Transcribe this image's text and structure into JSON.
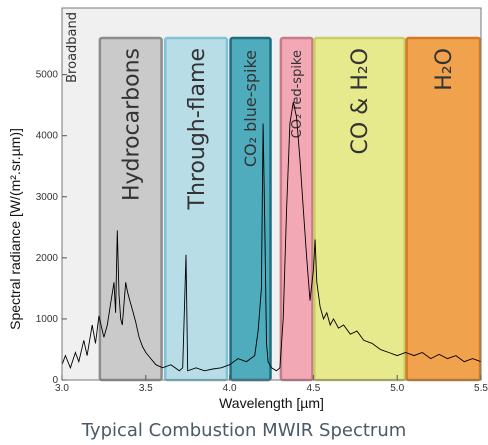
{
  "caption": "Typical Combustion MWIR Spectrum",
  "chart_data": {
    "type": "line",
    "xlabel": "Wavelength [µm]",
    "ylabel": "Spectral radiance [W/(m².sr.µm)]",
    "xlim": [
      3.0,
      5.5
    ],
    "ylim": [
      0,
      5600
    ],
    "xticks": [
      3.0,
      3.5,
      4.0,
      4.5,
      5.0,
      5.5
    ],
    "xtick_labels": [
      "3.0",
      "3.5",
      "4.0",
      "4.5",
      "5.0",
      "5.5"
    ],
    "yticks": [
      0,
      1000,
      2000,
      3000,
      4000,
      5000
    ],
    "ytick_labels": [
      "0",
      "1000",
      "2000",
      "3000",
      "4000",
      "5000"
    ],
    "background_color": "#f0f0f0",
    "line_color": "#000000",
    "bands": [
      {
        "label": "Broadband",
        "x0": 3.0,
        "x1": 5.5,
        "color": "#f0f0f0",
        "border": "#bdbdbd"
      },
      {
        "label": "Hydrocarbons",
        "x0": 3.22,
        "x1": 3.6,
        "color": "#cacaca",
        "border": "#8c8c8c"
      },
      {
        "label": "Through-flame",
        "x0": 3.61,
        "x1": 3.99,
        "color": "#b8dde6",
        "border": "#7fc3d6"
      },
      {
        "label": "CO₂ blue-spike",
        "x0": 4.0,
        "x1": 4.25,
        "color": "#4eacbc",
        "border": "#1f6e80"
      },
      {
        "label": "CO₂ red-spike",
        "x0": 4.3,
        "x1": 4.5,
        "color": "#f2a9b5",
        "border": "#c97b8a"
      },
      {
        "label": "CO & H₂O",
        "x0": 4.5,
        "x1": 5.05,
        "color": "#e6ea8c",
        "border": "#c9cf66"
      },
      {
        "label": "H₂O",
        "x0": 5.05,
        "x1": 5.5,
        "color": "#f1a24d",
        "border": "#d57a24"
      }
    ],
    "spectrum": [
      [
        3.0,
        250
      ],
      [
        3.02,
        400
      ],
      [
        3.05,
        200
      ],
      [
        3.08,
        450
      ],
      [
        3.1,
        300
      ],
      [
        3.13,
        650
      ],
      [
        3.15,
        400
      ],
      [
        3.18,
        900
      ],
      [
        3.2,
        600
      ],
      [
        3.22,
        1050
      ],
      [
        3.25,
        700
      ],
      [
        3.27,
        900
      ],
      [
        3.29,
        1250
      ],
      [
        3.31,
        1600
      ],
      [
        3.32,
        1100
      ],
      [
        3.33,
        2450
      ],
      [
        3.34,
        1400
      ],
      [
        3.35,
        1000
      ],
      [
        3.36,
        900
      ],
      [
        3.37,
        1250
      ],
      [
        3.38,
        1600
      ],
      [
        3.39,
        1450
      ],
      [
        3.4,
        1350
      ],
      [
        3.42,
        1150
      ],
      [
        3.44,
        950
      ],
      [
        3.46,
        700
      ],
      [
        3.48,
        550
      ],
      [
        3.5,
        450
      ],
      [
        3.53,
        350
      ],
      [
        3.56,
        250
      ],
      [
        3.6,
        200
      ],
      [
        3.65,
        250
      ],
      [
        3.7,
        150
      ],
      [
        3.72,
        200
      ],
      [
        3.74,
        2050
      ],
      [
        3.75,
        150
      ],
      [
        3.8,
        200
      ],
      [
        3.85,
        150
      ],
      [
        3.9,
        180
      ],
      [
        3.95,
        200
      ],
      [
        4.0,
        250
      ],
      [
        4.05,
        350
      ],
      [
        4.1,
        300
      ],
      [
        4.15,
        400
      ],
      [
        4.17,
        800
      ],
      [
        4.19,
        1500
      ],
      [
        4.2,
        4200
      ],
      [
        4.21,
        2500
      ],
      [
        4.22,
        600
      ],
      [
        4.23,
        300
      ],
      [
        4.25,
        200
      ],
      [
        4.28,
        150
      ],
      [
        4.3,
        200
      ],
      [
        4.32,
        1000
      ],
      [
        4.34,
        2800
      ],
      [
        4.36,
        4200
      ],
      [
        4.38,
        4550
      ],
      [
        4.4,
        4300
      ],
      [
        4.42,
        3600
      ],
      [
        4.44,
        2800
      ],
      [
        4.46,
        2000
      ],
      [
        4.48,
        1300
      ],
      [
        4.5,
        1800
      ],
      [
        4.51,
        2300
      ],
      [
        4.52,
        1600
      ],
      [
        4.54,
        1200
      ],
      [
        4.56,
        1000
      ],
      [
        4.58,
        1100
      ],
      [
        4.6,
        900
      ],
      [
        4.62,
        1000
      ],
      [
        4.65,
        850
      ],
      [
        4.68,
        900
      ],
      [
        4.72,
        750
      ],
      [
        4.76,
        800
      ],
      [
        4.8,
        650
      ],
      [
        4.85,
        600
      ],
      [
        4.9,
        500
      ],
      [
        4.95,
        450
      ],
      [
        5.0,
        400
      ],
      [
        5.05,
        450
      ],
      [
        5.1,
        400
      ],
      [
        5.15,
        450
      ],
      [
        5.2,
        350
      ],
      [
        5.25,
        420
      ],
      [
        5.3,
        350
      ],
      [
        5.35,
        400
      ],
      [
        5.4,
        300
      ],
      [
        5.45,
        350
      ],
      [
        5.5,
        300
      ]
    ]
  }
}
